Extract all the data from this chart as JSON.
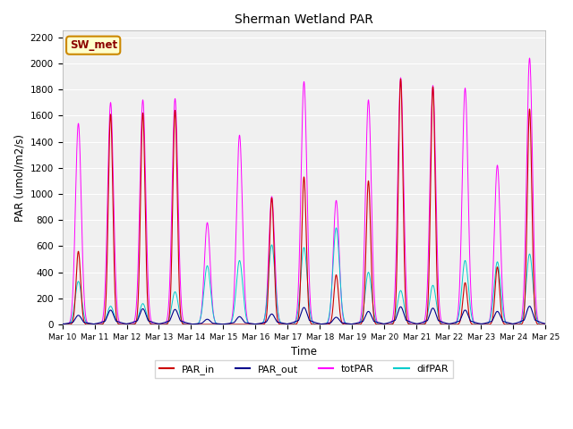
{
  "title": "Sherman Wetland PAR",
  "ylabel": "PAR (umol/m2/s)",
  "xlabel": "Time",
  "ylim": [
    0,
    2250
  ],
  "label_SW_met": "SW_met",
  "legend_labels": [
    "PAR_in",
    "PAR_out",
    "totPAR",
    "difPAR"
  ],
  "line_colors": {
    "PAR_in": "#cc0000",
    "PAR_out": "#00008b",
    "totPAR": "#ff00ff",
    "difPAR": "#00cccc"
  },
  "yticks": [
    0,
    200,
    400,
    600,
    800,
    1000,
    1200,
    1400,
    1600,
    1800,
    2000,
    2200
  ],
  "xtick_labels": [
    "Mar 10",
    "Mar 11",
    "Mar 12",
    "Mar 13",
    "Mar 14",
    "Mar 15",
    "Mar 16",
    "Mar 17",
    "Mar 18",
    "Mar 19",
    "Mar 20",
    "Mar 21",
    "Mar 22",
    "Mar 23",
    "Mar 24",
    "Mar 25"
  ],
  "day_peaks_totPAR": [
    1540,
    1700,
    1720,
    1730,
    780,
    1450,
    980,
    1860,
    950,
    1720,
    1890,
    1830,
    1810,
    1220,
    2040
  ],
  "day_peaks_PAR_in": [
    560,
    1610,
    1620,
    1640,
    0,
    0,
    970,
    1130,
    380,
    1100,
    1880,
    1820,
    320,
    440,
    1650
  ],
  "day_peaks_PAR_out": [
    70,
    110,
    120,
    115,
    40,
    60,
    80,
    130,
    55,
    100,
    135,
    125,
    110,
    100,
    140
  ],
  "day_peaks_difPAR": [
    330,
    140,
    160,
    250,
    450,
    490,
    610,
    590,
    740,
    400,
    260,
    300,
    490,
    480,
    540
  ],
  "fig_bg": "#ffffff",
  "plot_bg": "#f0f0f0",
  "grid_color": "#ffffff"
}
